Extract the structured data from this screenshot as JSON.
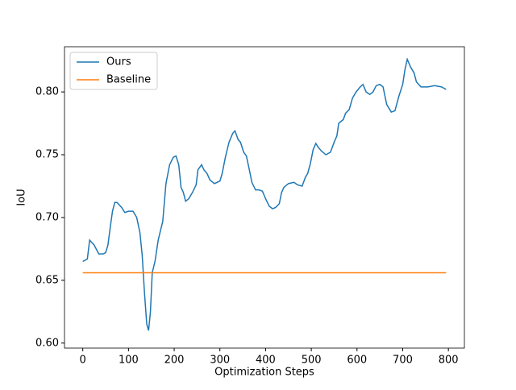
{
  "chart_data": {
    "type": "line",
    "xlabel": "Optimization Steps",
    "ylabel": "IoU",
    "xlim": [
      -40,
      835
    ],
    "ylim": [
      0.596,
      0.836
    ],
    "xticks": [
      0,
      100,
      200,
      300,
      400,
      500,
      600,
      700,
      800
    ],
    "yticks": [
      {
        "value": 0.6,
        "label": "0.60"
      },
      {
        "value": 0.65,
        "label": "0.65"
      },
      {
        "value": 0.7,
        "label": "0.70"
      },
      {
        "value": 0.75,
        "label": "0.75"
      },
      {
        "value": 0.8,
        "label": "0.80"
      }
    ],
    "legend": "upper left",
    "series": [
      {
        "name": "Ours",
        "color": "#1f77b4",
        "x": [
          0,
          10,
          15,
          25,
          35,
          45,
          50,
          55,
          60,
          65,
          70,
          75,
          85,
          92,
          100,
          110,
          118,
          125,
          130,
          135,
          140,
          144,
          148,
          152,
          158,
          165,
          175,
          182,
          190,
          198,
          204,
          210,
          215,
          220,
          225,
          232,
          240,
          248,
          252,
          260,
          265,
          272,
          278,
          288,
          300,
          305,
          312,
          320,
          328,
          333,
          340,
          345,
          352,
          358,
          365,
          370,
          378,
          385,
          393,
          400,
          408,
          415,
          422,
          430,
          435,
          440,
          450,
          462,
          470,
          480,
          487,
          492,
          498,
          504,
          510,
          515,
          522,
          532,
          542,
          550,
          556,
          560,
          570,
          575,
          583,
          590,
          598,
          607,
          613,
          620,
          628,
          635,
          642,
          650,
          657,
          665,
          675,
          683,
          692,
          700,
          705,
          710,
          717,
          725,
          730,
          740,
          755,
          770,
          785,
          795
        ],
        "values": [
          0.665,
          0.667,
          0.682,
          0.678,
          0.671,
          0.671,
          0.672,
          0.678,
          0.692,
          0.705,
          0.712,
          0.712,
          0.708,
          0.704,
          0.705,
          0.705,
          0.7,
          0.688,
          0.67,
          0.64,
          0.615,
          0.61,
          0.625,
          0.656,
          0.665,
          0.682,
          0.697,
          0.727,
          0.742,
          0.748,
          0.749,
          0.742,
          0.724,
          0.72,
          0.713,
          0.715,
          0.72,
          0.726,
          0.738,
          0.742,
          0.738,
          0.735,
          0.73,
          0.727,
          0.729,
          0.735,
          0.748,
          0.76,
          0.767,
          0.769,
          0.762,
          0.76,
          0.752,
          0.749,
          0.737,
          0.728,
          0.722,
          0.722,
          0.721,
          0.715,
          0.709,
          0.707,
          0.708,
          0.711,
          0.72,
          0.724,
          0.727,
          0.728,
          0.726,
          0.725,
          0.732,
          0.735,
          0.743,
          0.754,
          0.759,
          0.756,
          0.753,
          0.75,
          0.752,
          0.76,
          0.765,
          0.775,
          0.778,
          0.783,
          0.786,
          0.795,
          0.8,
          0.804,
          0.806,
          0.8,
          0.798,
          0.8,
          0.805,
          0.806,
          0.804,
          0.79,
          0.784,
          0.785,
          0.797,
          0.806,
          0.818,
          0.826,
          0.82,
          0.815,
          0.808,
          0.804,
          0.804,
          0.805,
          0.804,
          0.802
        ]
      },
      {
        "name": "Baseline",
        "color": "#ff7f0e",
        "x": [
          0,
          795
        ],
        "values": [
          0.656,
          0.656
        ]
      }
    ]
  }
}
